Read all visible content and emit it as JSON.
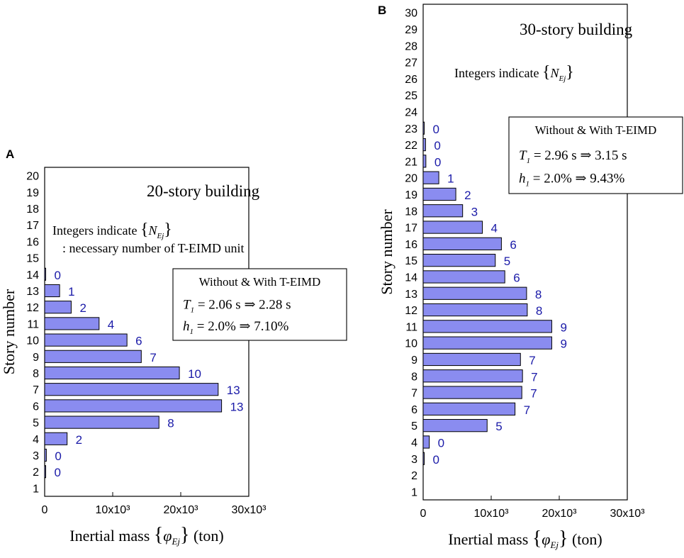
{
  "chart_data": [
    {
      "panel_label": "A",
      "type": "bar",
      "orientation": "horizontal",
      "title": "20-story building",
      "note_line1": "Integers indicate",
      "note_symbol": "N",
      "note_symbol_sub": "Ej",
      "note_line2": ": necessary number of T-EIMD unit",
      "legend_title": "Without & With T-EIMD",
      "legend_T1_label": "T",
      "legend_T1_sub": "1",
      "legend_T1_before": "= 2.06 s",
      "legend_T1_after": "2.28 s",
      "legend_h1_label": "h",
      "legend_h1_sub": "1",
      "legend_h1_before": "= 2.0%",
      "legend_h1_after": "7.10%",
      "arrow": "⇒",
      "ylabel": "Story number",
      "xlabel_prefix": "Inertial mass",
      "xlabel_symbol": "φ",
      "xlabel_sub": "Ej",
      "xlabel_suffix": "(ton)",
      "xlim": [
        0,
        30000
      ],
      "xticks": [
        0,
        10000,
        20000,
        30000
      ],
      "xtick_labels": [
        "0",
        "10x10³",
        "20x10³",
        "30x10³"
      ],
      "stories": [
        1,
        2,
        3,
        4,
        5,
        6,
        7,
        8,
        9,
        10,
        11,
        12,
        13,
        14,
        15,
        16,
        17,
        18,
        19,
        20
      ],
      "bars": [
        {
          "story": 2,
          "value": 120,
          "count": "0"
        },
        {
          "story": 3,
          "value": 250,
          "count": "0"
        },
        {
          "story": 4,
          "value": 3300,
          "count": "2"
        },
        {
          "story": 5,
          "value": 16800,
          "count": "8"
        },
        {
          "story": 6,
          "value": 26000,
          "count": "13"
        },
        {
          "story": 7,
          "value": 25500,
          "count": "13"
        },
        {
          "story": 8,
          "value": 19800,
          "count": "10"
        },
        {
          "story": 9,
          "value": 14200,
          "count": "7"
        },
        {
          "story": 10,
          "value": 12100,
          "count": "6"
        },
        {
          "story": 11,
          "value": 8000,
          "count": "4"
        },
        {
          "story": 12,
          "value": 3900,
          "count": "2"
        },
        {
          "story": 13,
          "value": 2200,
          "count": "1"
        },
        {
          "story": 14,
          "value": 100,
          "count": "0"
        }
      ]
    },
    {
      "panel_label": "B",
      "type": "bar",
      "orientation": "horizontal",
      "title": "30-story building",
      "note_line1": "Integers indicate",
      "note_symbol": "N",
      "note_symbol_sub": "Ej",
      "legend_title": "Without & With T-EIMD",
      "legend_T1_label": "T",
      "legend_T1_sub": "1",
      "legend_T1_before": "= 2.96 s",
      "legend_T1_after": "3.15 s",
      "legend_h1_label": "h",
      "legend_h1_sub": "1",
      "legend_h1_before": "= 2.0%",
      "legend_h1_after": "9.43%",
      "arrow": "⇒",
      "ylabel": "Story number",
      "xlabel_prefix": "Inertial mass",
      "xlabel_symbol": "φ",
      "xlabel_sub": "Ej",
      "xlabel_suffix": "(ton)",
      "xlim": [
        0,
        30000
      ],
      "xticks": [
        0,
        10000,
        20000,
        30000
      ],
      "xtick_labels": [
        "0",
        "10x10³",
        "20x10³",
        "30x10³"
      ],
      "stories": [
        1,
        2,
        3,
        4,
        5,
        6,
        7,
        8,
        9,
        10,
        11,
        12,
        13,
        14,
        15,
        16,
        17,
        18,
        19,
        20,
        21,
        22,
        23,
        24,
        25,
        26,
        27,
        28,
        29,
        30
      ],
      "bars": [
        {
          "story": 3,
          "value": 150,
          "count": "0"
        },
        {
          "story": 4,
          "value": 900,
          "count": "0"
        },
        {
          "story": 5,
          "value": 9400,
          "count": "5"
        },
        {
          "story": 6,
          "value": 13500,
          "count": "7"
        },
        {
          "story": 7,
          "value": 14500,
          "count": "7"
        },
        {
          "story": 8,
          "value": 14600,
          "count": "7"
        },
        {
          "story": 9,
          "value": 14300,
          "count": "7"
        },
        {
          "story": 10,
          "value": 18900,
          "count": "9"
        },
        {
          "story": 11,
          "value": 18900,
          "count": "9"
        },
        {
          "story": 12,
          "value": 15300,
          "count": "8"
        },
        {
          "story": 13,
          "value": 15200,
          "count": "8"
        },
        {
          "story": 14,
          "value": 12000,
          "count": "6"
        },
        {
          "story": 15,
          "value": 10600,
          "count": "5"
        },
        {
          "story": 16,
          "value": 11500,
          "count": "6"
        },
        {
          "story": 17,
          "value": 8700,
          "count": "4"
        },
        {
          "story": 18,
          "value": 5800,
          "count": "3"
        },
        {
          "story": 19,
          "value": 4800,
          "count": "2"
        },
        {
          "story": 20,
          "value": 2300,
          "count": "1"
        },
        {
          "story": 21,
          "value": 400,
          "count": "0"
        },
        {
          "story": 22,
          "value": 350,
          "count": "0"
        },
        {
          "story": 23,
          "value": 150,
          "count": "0"
        }
      ]
    }
  ],
  "colors": {
    "bar_fill": "#8a8cf0",
    "bar_stroke": "#000000",
    "count_text": "#1a1aa8",
    "axis": "#000000"
  }
}
